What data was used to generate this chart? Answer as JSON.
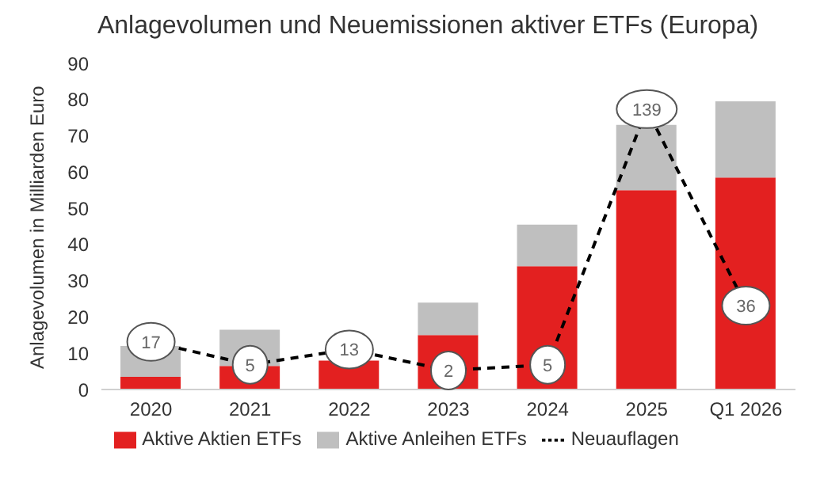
{
  "chart_data": {
    "type": "bar",
    "title": "Anlagevolumen und Neuemissionen aktiver ETFs (Europa)",
    "ylabel": "Anlagevolumen in Milliarden Euro",
    "categories": [
      "2020",
      "2021",
      "2022",
      "2023",
      "2024",
      "2025",
      "Q1 2026"
    ],
    "stacked": true,
    "series": [
      {
        "name": "Aktive Aktien ETFs",
        "color": "#e32020",
        "values": [
          3.5,
          6.5,
          8,
          15,
          34,
          55,
          58.5
        ]
      },
      {
        "name": "Aktive Anleihen ETFs",
        "color": "#bfbfbf",
        "values": [
          8.5,
          10,
          null,
          9,
          11.5,
          18,
          21
        ]
      },
      {
        "name": "Neuauflagen",
        "type": "line",
        "axis": "y2",
        "color": "#000000",
        "line_style": "dashed",
        "marker": "circle",
        "values": [
          17,
          5,
          13,
          2,
          5,
          139,
          36
        ],
        "value_labels": [
          "17",
          "5",
          "13",
          "2",
          "5",
          "139",
          "36"
        ]
      }
    ],
    "ylim": [
      0,
      90
    ],
    "yticks": [
      0,
      10,
      20,
      30,
      40,
      50,
      60,
      70,
      80,
      90
    ],
    "legend": "bottom"
  }
}
